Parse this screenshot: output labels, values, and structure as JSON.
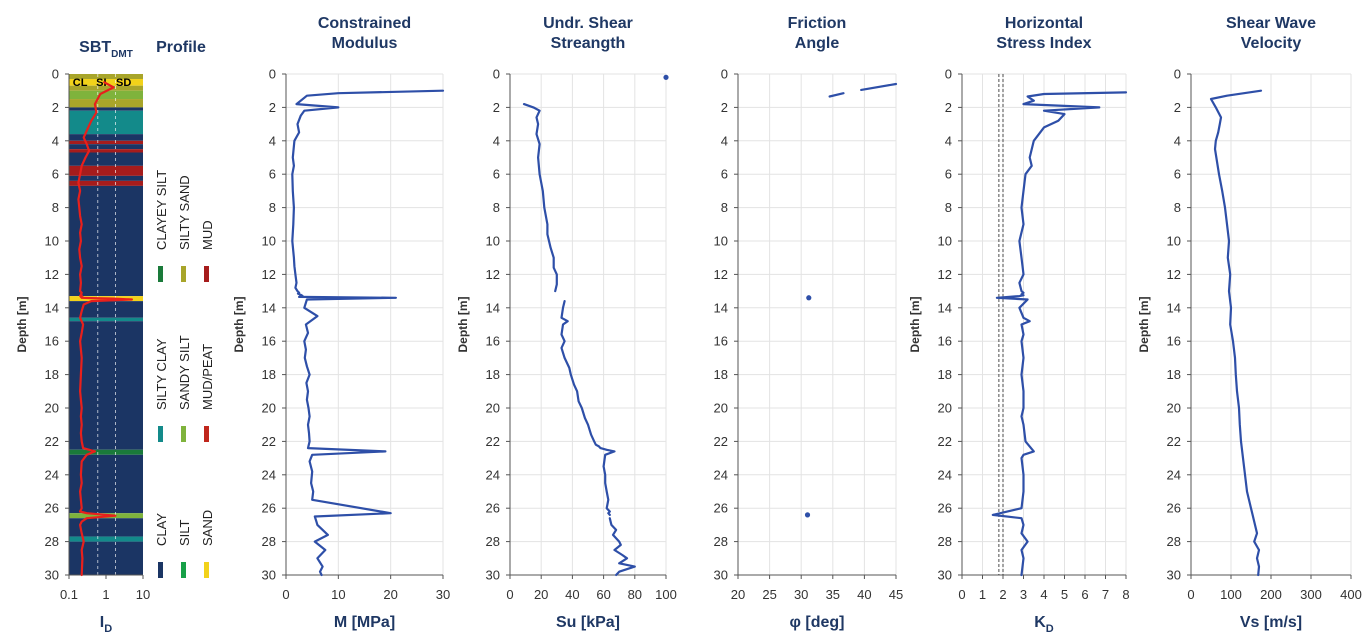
{
  "chart_data": [
    {
      "id": "sbt",
      "type": "area",
      "title_main": "SBT",
      "title_sub": "DMT",
      "title_extra": "Profile",
      "xlabel_main": "I",
      "xlabel_sub": "D",
      "ylabel": "Depth [m]",
      "x_scale": "log",
      "xlim": [
        0.1,
        10
      ],
      "x_ticks": [
        "0.1",
        "1",
        "10"
      ],
      "x_tick_values": [
        0.1,
        1,
        10
      ],
      "ylim": [
        0,
        30
      ],
      "y_ticks": [
        "0",
        "2",
        "4",
        "6",
        "8",
        "10",
        "12",
        "14",
        "16",
        "18",
        "20",
        "22",
        "24",
        "26",
        "28",
        "30"
      ],
      "top_labels": [
        "CL",
        "SI",
        "SD"
      ],
      "ref_lines_x": [
        0.6,
        1.8
      ],
      "layers": [
        {
          "from": 0.0,
          "to": 0.3,
          "class": "SILTY SAND"
        },
        {
          "from": 0.3,
          "to": 0.7,
          "class": "SAND"
        },
        {
          "from": 0.7,
          "to": 1.0,
          "class": "SILTY SAND"
        },
        {
          "from": 1.0,
          "to": 1.5,
          "class": "SANDY SILT"
        },
        {
          "from": 1.5,
          "to": 2.0,
          "class": "SILTY SAND"
        },
        {
          "from": 2.0,
          "to": 2.2,
          "class": "CLAY"
        },
        {
          "from": 2.2,
          "to": 3.6,
          "class": "SILTY CLAY"
        },
        {
          "from": 3.6,
          "to": 4.0,
          "class": "CLAY"
        },
        {
          "from": 4.0,
          "to": 4.2,
          "class": "MUD"
        },
        {
          "from": 4.2,
          "to": 4.5,
          "class": "CLAY"
        },
        {
          "from": 4.5,
          "to": 4.7,
          "class": "MUD"
        },
        {
          "from": 4.7,
          "to": 5.5,
          "class": "CLAY"
        },
        {
          "from": 5.5,
          "to": 6.1,
          "class": "MUD"
        },
        {
          "from": 6.1,
          "to": 6.4,
          "class": "CLAY"
        },
        {
          "from": 6.4,
          "to": 6.7,
          "class": "MUD"
        },
        {
          "from": 6.7,
          "to": 13.3,
          "class": "CLAY"
        },
        {
          "from": 13.3,
          "to": 13.6,
          "class": "SAND"
        },
        {
          "from": 13.6,
          "to": 14.6,
          "class": "CLAY"
        },
        {
          "from": 14.6,
          "to": 14.8,
          "class": "SILTY CLAY"
        },
        {
          "from": 14.8,
          "to": 22.5,
          "class": "CLAY"
        },
        {
          "from": 22.5,
          "to": 22.8,
          "class": "CLAYEY SILT"
        },
        {
          "from": 22.8,
          "to": 26.3,
          "class": "CLAY"
        },
        {
          "from": 26.3,
          "to": 26.6,
          "class": "SANDY SILT"
        },
        {
          "from": 26.6,
          "to": 27.7,
          "class": "CLAY"
        },
        {
          "from": 27.7,
          "to": 28.0,
          "class": "SILTY CLAY"
        },
        {
          "from": 28.0,
          "to": 30.0,
          "class": "CLAY"
        }
      ],
      "series": [
        {
          "x": [
            0.9,
            1.6,
            0.7,
            0.5,
            0.55,
            0.4,
            0.3,
            0.25,
            0.3,
            0.35,
            0.28,
            0.22,
            0.2,
            0.18,
            0.2,
            0.18,
            0.19,
            0.2,
            0.22,
            0.2,
            0.21,
            0.19,
            0.2,
            0.22,
            0.2,
            0.21,
            0.2,
            0.22,
            0.21,
            0.22,
            0.2,
            0.21,
            0.22,
            0.21,
            0.24,
            0.22,
            0.4,
            1.6,
            5.0,
            0.4,
            0.25,
            0.22,
            0.2,
            0.24,
            0.22,
            0.2,
            0.22,
            0.21,
            0.2,
            0.22,
            0.21,
            0.22,
            0.21,
            0.22,
            0.24,
            0.5,
            0.3,
            0.22,
            0.21,
            0.22,
            0.2,
            0.21,
            0.22,
            0.2,
            0.3,
            1.8,
            0.3,
            0.22,
            0.2,
            0.22,
            0.25,
            0.22,
            0.23,
            0.22
          ],
          "y": [
            0.5,
            0.8,
            1.2,
            1.8,
            2.3,
            2.8,
            3.4,
            3.8,
            4.2,
            4.6,
            5.0,
            5.5,
            6.0,
            6.5,
            7.0,
            7.5,
            8.0,
            8.5,
            9.0,
            9.5,
            10.0,
            10.5,
            11.0,
            11.5,
            12.0,
            12.5,
            13.0,
            13.1,
            13.2,
            13.25,
            13.28,
            13.3,
            13.32,
            13.35,
            13.38,
            13.4,
            13.42,
            13.45,
            13.5,
            13.6,
            13.8,
            14.2,
            14.6,
            15.0,
            15.5,
            16.0,
            17.0,
            18.0,
            19.0,
            20.0,
            20.5,
            21.0,
            21.5,
            22.0,
            22.4,
            22.6,
            22.8,
            23.2,
            24.0,
            24.5,
            25.0,
            25.5,
            26.0,
            26.2,
            26.3,
            26.45,
            26.6,
            26.8,
            27.0,
            27.5,
            28.0,
            28.5,
            29.0,
            30.0
          ]
        }
      ],
      "legend": [
        {
          "label": "CLAYEY SILT",
          "color": "#1a7a3a"
        },
        {
          "label": "SILTY SAND",
          "color": "#a8a52a"
        },
        {
          "label": "MUD",
          "color": "#a61c1c"
        },
        {
          "label": "SILTY CLAY",
          "color": "#138a8a"
        },
        {
          "label": "SANDY SILT",
          "color": "#7fb33c"
        },
        {
          "label": "MUD/PEAT",
          "color": "#c0261c"
        },
        {
          "label": "CLAY",
          "color": "#1b3564"
        },
        {
          "label": "SILT",
          "color": "#18a048"
        },
        {
          "label": "SAND",
          "color": "#f2d21a"
        }
      ]
    },
    {
      "id": "modulus",
      "type": "line",
      "title_lines": [
        "Constrained",
        "Modulus"
      ],
      "xlabel": "M [MPa]",
      "ylabel": "Depth [m]",
      "xlim": [
        0,
        30
      ],
      "x_ticks": [
        "0",
        "10",
        "20",
        "30"
      ],
      "x_tick_values": [
        0,
        10,
        20,
        30
      ],
      "ylim": [
        0,
        30
      ],
      "y_ticks": [
        "0",
        "2",
        "4",
        "6",
        "8",
        "10",
        "12",
        "14",
        "16",
        "18",
        "20",
        "22",
        "24",
        "26",
        "28",
        "30"
      ],
      "series": [
        {
          "x": [
            30,
            10,
            4,
            2,
            10,
            3.5,
            2.8,
            2.2,
            2.5,
            1.6,
            1.3,
            1.5,
            1.2,
            1.3,
            1.5,
            1.4,
            1.2,
            1.5,
            1.6,
            1.8,
            2.0,
            1.8,
            2.2,
            2.5,
            2.3,
            2.6,
            3.0,
            2.8,
            3.2,
            2.8,
            2.5,
            21.0,
            4.0,
            3.5,
            6.0,
            3.8,
            4.2,
            3.5,
            3.8,
            3.6,
            4.0,
            4.5,
            3.9,
            4.2,
            4.0,
            4.3,
            4.5,
            4.2,
            4.4,
            4.5,
            4.2,
            19.0,
            5.0,
            4.5,
            5.0,
            4.8,
            5.2,
            5.0,
            20.0,
            5.5,
            5.8,
            6.0,
            8.0,
            5.5,
            7.5,
            6.0,
            7.0,
            6.5,
            6.8
          ],
          "y": [
            1.0,
            1.15,
            1.3,
            1.8,
            2.0,
            2.2,
            2.5,
            3.0,
            3.5,
            4.0,
            5.0,
            5.5,
            6.0,
            7.0,
            8.0,
            9.0,
            10.0,
            11.0,
            11.5,
            12.0,
            12.5,
            12.8,
            13.0,
            13.1,
            13.15,
            13.2,
            13.25,
            13.28,
            13.3,
            13.32,
            13.35,
            13.4,
            13.5,
            14.0,
            14.5,
            15.0,
            15.5,
            16.0,
            16.5,
            17.0,
            17.5,
            18.0,
            18.5,
            19.0,
            19.5,
            20.0,
            20.5,
            21.0,
            21.5,
            22.0,
            22.4,
            22.6,
            22.8,
            23.2,
            23.8,
            24.5,
            25.0,
            25.5,
            26.3,
            26.5,
            26.8,
            27.0,
            27.6,
            28.0,
            28.5,
            29.0,
            29.5,
            29.8,
            30.0
          ]
        }
      ]
    },
    {
      "id": "shear",
      "type": "line",
      "title_lines": [
        "Undr. Shear",
        "Streangth"
      ],
      "xlabel": "Su [kPa]",
      "ylabel": "Depth [m]",
      "xlim": [
        0,
        100
      ],
      "x_ticks": [
        "0",
        "20",
        "40",
        "60",
        "80",
        "100"
      ],
      "x_tick_values": [
        0,
        20,
        40,
        60,
        80,
        100
      ],
      "ylim": [
        0,
        30
      ],
      "y_ticks": [
        "0",
        "2",
        "4",
        "6",
        "8",
        "10",
        "12",
        "14",
        "16",
        "18",
        "20",
        "22",
        "24",
        "26",
        "28",
        "30"
      ],
      "series": [
        {
          "x": [
            9,
            15,
            19,
            17,
            18,
            17,
            19,
            18,
            19,
            21,
            22,
            24,
            24,
            26,
            28,
            28,
            30,
            30,
            29
          ],
          "y": [
            1.8,
            2.0,
            2.2,
            2.6,
            3.0,
            3.6,
            4.2,
            5.0,
            6.0,
            7.0,
            8.0,
            9.0,
            9.6,
            10.4,
            11.0,
            11.6,
            12.0,
            12.6,
            13.0
          ]
        },
        {
          "x": [
            35,
            34,
            33,
            37,
            34,
            33,
            35,
            33,
            35,
            38,
            39,
            41,
            43,
            44,
            46,
            48,
            50,
            52,
            54,
            55,
            57,
            58,
            62,
            67,
            61,
            60,
            61,
            61,
            62,
            63,
            62,
            64,
            63,
            64
          ],
          "y": [
            13.6,
            14.0,
            14.6,
            14.8,
            15.0,
            15.6,
            16.0,
            16.4,
            17.0,
            17.6,
            18.0,
            18.6,
            19.0,
            19.6,
            20.0,
            20.6,
            21.0,
            21.6,
            22.0,
            22.2,
            22.3,
            22.4,
            22.5,
            22.6,
            22.8,
            23.5,
            24.0,
            24.5,
            25.0,
            25.5,
            26.0,
            26.2,
            26.3,
            26.4
          ]
        },
        {
          "x": [
            64,
            65,
            68,
            66,
            70,
            71,
            67,
            72,
            75,
            70,
            80,
            70,
            68
          ],
          "y": [
            26.6,
            27.0,
            27.3,
            27.6,
            28.0,
            28.2,
            28.5,
            28.8,
            29.0,
            29.3,
            29.5,
            29.8,
            30.0
          ]
        }
      ],
      "points": [
        {
          "x": 100,
          "y": 0.2
        }
      ]
    },
    {
      "id": "friction",
      "type": "line",
      "title_lines": [
        "Friction",
        "Angle"
      ],
      "xlabel": "φ [deg]",
      "ylabel": "",
      "xlim": [
        20,
        45
      ],
      "x_ticks": [
        "20",
        "25",
        "30",
        "35",
        "40",
        "45"
      ],
      "x_tick_values": [
        20,
        25,
        30,
        35,
        40,
        45
      ],
      "ylim": [
        0,
        30
      ],
      "y_ticks": [
        "0",
        "2",
        "4",
        "6",
        "8",
        "10",
        "12",
        "14",
        "16",
        "18",
        "20",
        "22",
        "24",
        "26",
        "28",
        "30"
      ],
      "series": [
        {
          "x": [
            45,
            39.5
          ],
          "y": [
            0.6,
            0.95
          ]
        },
        {
          "x": [
            36.7,
            34.5
          ],
          "y": [
            1.15,
            1.35
          ]
        }
      ],
      "points": [
        {
          "x": 31.2,
          "y": 13.4
        },
        {
          "x": 31.0,
          "y": 26.4
        }
      ]
    },
    {
      "id": "kd",
      "type": "line",
      "title_lines": [
        "Horizontal",
        "Stress Index"
      ],
      "xlabel_main": "K",
      "xlabel_sub": "D",
      "ylabel": "Depth [m]",
      "xlim": [
        0,
        8
      ],
      "x_ticks": [
        "0",
        "1",
        "2",
        "3",
        "4",
        "5",
        "6",
        "7",
        "8"
      ],
      "x_tick_values": [
        0,
        1,
        2,
        3,
        4,
        5,
        6,
        7,
        8
      ],
      "ylim": [
        0,
        30
      ],
      "y_ticks": [
        "0",
        "2",
        "4",
        "6",
        "8",
        "10",
        "12",
        "14",
        "16",
        "18",
        "20",
        "22",
        "24",
        "26",
        "28",
        "30"
      ],
      "ref_lines_x": [
        1.8,
        2.0
      ],
      "series": [
        {
          "x": [
            8,
            4,
            3.2,
            3.5,
            3.0,
            6.7,
            4.0,
            5.0,
            4.7,
            4.0,
            3.5,
            3.3,
            3.4,
            3.1,
            3.0,
            2.9,
            3.0,
            2.8,
            2.9,
            3.0,
            2.8,
            2.9,
            3.0,
            2.9,
            3.0,
            2.8,
            1.7,
            3.2,
            2.8,
            3.0,
            3.3,
            2.9,
            3.0,
            2.9,
            3.0,
            2.9,
            3.0,
            3.0,
            2.9,
            3.0,
            3.1,
            3.5,
            3.0,
            2.9,
            3.0,
            3.0,
            2.9,
            1.5,
            2.9,
            3.0,
            2.9,
            3.2,
            2.9,
            3.0,
            2.9
          ],
          "y": [
            1.1,
            1.2,
            1.35,
            1.6,
            1.8,
            2.0,
            2.2,
            2.4,
            2.8,
            3.2,
            4.0,
            5.0,
            5.5,
            6.0,
            7.0,
            8.0,
            9.0,
            10.0,
            11.0,
            12.0,
            12.5,
            13.0,
            13.1,
            13.2,
            13.25,
            13.3,
            13.4,
            13.5,
            14.0,
            14.6,
            14.8,
            15.0,
            15.6,
            16.0,
            17.0,
            18.0,
            19.0,
            20.0,
            20.5,
            21.0,
            22.0,
            22.6,
            22.8,
            23.0,
            24.0,
            25.0,
            26.0,
            26.4,
            26.6,
            27.0,
            27.5,
            28.0,
            28.5,
            29.0,
            30.0
          ]
        }
      ]
    },
    {
      "id": "vs",
      "type": "line",
      "title_lines": [
        "Shear Wave",
        "Velocity"
      ],
      "xlabel": "Vs [m/s]",
      "ylabel": "Depth [m]",
      "xlim": [
        0,
        400
      ],
      "x_ticks": [
        "0",
        "100",
        "200",
        "300",
        "400"
      ],
      "x_tick_values": [
        0,
        100,
        200,
        300,
        400
      ],
      "ylim": [
        0,
        30
      ],
      "y_ticks": [
        "0",
        "2",
        "4",
        "6",
        "8",
        "10",
        "12",
        "14",
        "16",
        "18",
        "20",
        "22",
        "24",
        "26",
        "28",
        "30"
      ],
      "series": [
        {
          "x": [
            175,
            90,
            50,
            62,
            75,
            72,
            68,
            62,
            60,
            70,
            78,
            85,
            90,
            95,
            92,
            98,
            95,
            100,
            98,
            105,
            110,
            112,
            115,
            120,
            122,
            125,
            130,
            135,
            140,
            150,
            155,
            160,
            165,
            158,
            170,
            165,
            170,
            168
          ],
          "y": [
            1.0,
            1.3,
            1.5,
            2.0,
            2.6,
            3.0,
            3.5,
            4.0,
            4.5,
            6.0,
            7.0,
            8.0,
            9.0,
            10.0,
            11.0,
            12.0,
            13.0,
            14.0,
            15.0,
            16.0,
            17.0,
            18.0,
            19.0,
            20.0,
            21.0,
            22.0,
            23.0,
            24.0,
            25.0,
            26.0,
            26.5,
            27.0,
            27.5,
            28.0,
            28.5,
            29.0,
            29.5,
            30.0
          ]
        }
      ]
    }
  ]
}
